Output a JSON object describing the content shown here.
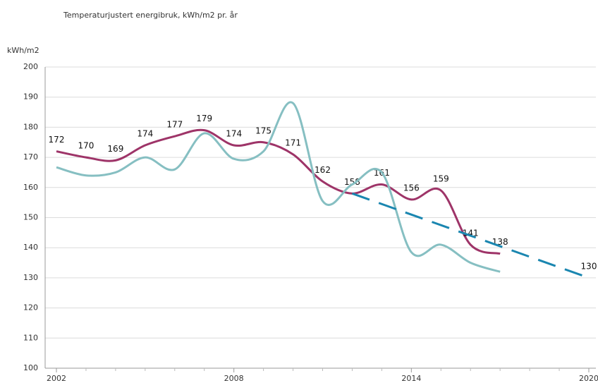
{
  "chart_data": {
    "type": "line",
    "title": "Temperaturjustert energibruk, kWh/m2 pr. år",
    "y_label": "kWh/m2",
    "xlim": [
      2002,
      2020
    ],
    "xticks": [
      2002,
      2008,
      2014,
      2020
    ],
    "xticks_minor": [
      2003,
      2004,
      2005,
      2006,
      2007,
      2009,
      2010,
      2011,
      2012,
      2013,
      2015,
      2016,
      2017,
      2018,
      2019
    ],
    "ylim": [
      100,
      200
    ],
    "yticks": [
      100,
      110,
      120,
      130,
      140,
      150,
      160,
      170,
      180,
      190,
      200
    ],
    "grid": true,
    "series": [
      {
        "color": "#9e3468",
        "style": "solid",
        "labels": true,
        "x": [
          2002,
          2003,
          2004,
          2005,
          2006,
          2007,
          2008,
          2009,
          2010,
          2011,
          2012,
          2013,
          2014,
          2015,
          2016,
          2017
        ],
        "values": [
          172,
          170,
          169,
          174,
          177,
          179,
          174,
          175,
          171,
          162,
          158,
          161,
          156,
          159,
          141,
          138
        ]
      },
      {
        "color": "#86bfc2",
        "style": "solid",
        "labels": false,
        "x": [
          2002,
          2003,
          2004,
          2005,
          2006,
          2007,
          2008,
          2009,
          2010,
          2011,
          2012,
          2013,
          2014,
          2015,
          2016,
          2017
        ],
        "values": [
          166.7,
          164,
          165,
          170,
          166,
          178,
          169.5,
          172,
          188,
          155.5,
          161,
          165,
          138.5,
          141,
          135,
          132
        ]
      },
      {
        "color": "#1a86b0",
        "style": "dashed",
        "labels": "last",
        "x": [
          2012,
          2020
        ],
        "values": [
          158,
          130
        ]
      }
    ]
  }
}
